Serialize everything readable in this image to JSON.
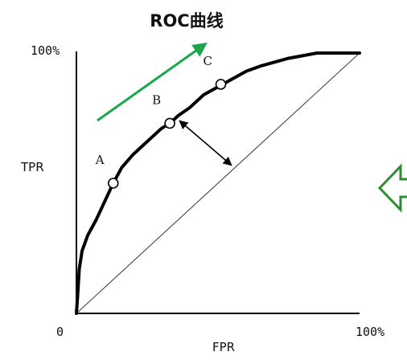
{
  "chart_data": {
    "type": "line",
    "title": "ROC曲线",
    "xlabel": "FPR",
    "ylabel": "TPR",
    "xlim": [
      0,
      100
    ],
    "ylim": [
      0,
      100
    ],
    "grid": false,
    "x_tick_labels": [
      "0",
      "100%"
    ],
    "y_tick_labels": [
      "100%"
    ],
    "series": [
      {
        "role": "roc-curve",
        "x": [
          0,
          0.5,
          1,
          2,
          4,
          7,
          10,
          13,
          16,
          20,
          24,
          27,
          30,
          33,
          36,
          40,
          45,
          50,
          55,
          60,
          65,
          70,
          75,
          80,
          85,
          90,
          95,
          100
        ],
        "y": [
          0,
          8,
          17,
          24,
          30,
          36,
          43,
          50,
          56,
          61,
          65,
          68,
          71,
          73,
          76,
          79,
          84,
          87,
          90,
          93,
          95,
          96.5,
          98,
          99,
          100,
          100,
          100,
          100
        ]
      },
      {
        "role": "diagonal",
        "x": [
          0,
          100
        ],
        "y": [
          0,
          100
        ]
      }
    ],
    "points": [
      {
        "label": "A",
        "x": 13,
        "y": 50
      },
      {
        "label": "B",
        "x": 33,
        "y": 73
      },
      {
        "label": "C",
        "x": 51,
        "y": 88
      }
    ],
    "annotations": {
      "improvement_arrow_color": "#1aa64a",
      "distance_arrow_color": "#000000",
      "side_arrow_color": "#2d8c32"
    }
  }
}
